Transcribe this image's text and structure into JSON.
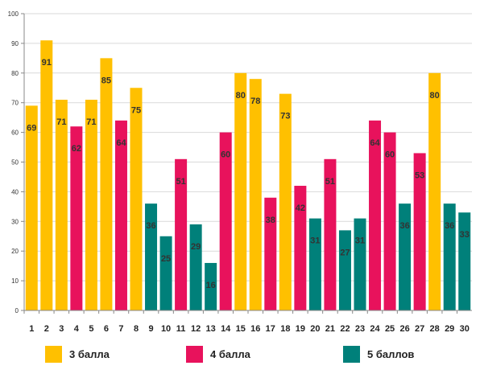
{
  "chart_data": {
    "type": "bar",
    "categories": [
      "1",
      "2",
      "3",
      "4",
      "5",
      "6",
      "7",
      "8",
      "9",
      "10",
      "11",
      "12",
      "13",
      "14",
      "15",
      "16",
      "17",
      "18",
      "19",
      "20",
      "21",
      "22",
      "23",
      "24",
      "25",
      "26",
      "27",
      "28",
      "29",
      "30"
    ],
    "values": [
      69,
      91,
      71,
      62,
      71,
      85,
      64,
      75,
      36,
      25,
      51,
      29,
      16,
      60,
      80,
      78,
      38,
      73,
      42,
      31,
      51,
      27,
      31,
      64,
      60,
      36,
      53,
      80,
      36,
      33
    ],
    "groups": [
      "3 балла",
      "3 балла",
      "3 балла",
      "4 балла",
      "3 балла",
      "3 балла",
      "4 балла",
      "3 балла",
      "5 баллов",
      "5 баллов",
      "4 балла",
      "5 баллов",
      "5 баллов",
      "4 балла",
      "3 балла",
      "3 балла",
      "4 балла",
      "3 балла",
      "4 балла",
      "5 баллов",
      "4 балла",
      "5 баллов",
      "5 баллов",
      "4 балла",
      "4 балла",
      "5 баллов",
      "4 балла",
      "3 балла",
      "5 баллов",
      "5 баллов"
    ],
    "ylim": [
      0,
      100
    ],
    "y_ticks": [
      0,
      10,
      20,
      30,
      40,
      50,
      60,
      70,
      80,
      90,
      100
    ],
    "grid": true,
    "legend_position": "bottom",
    "legend": [
      {
        "name": "3 балла",
        "color": "#FFC000"
      },
      {
        "name": "4 балла",
        "color": "#E8125C"
      },
      {
        "name": "5 баллов",
        "color": "#00807A"
      }
    ]
  }
}
